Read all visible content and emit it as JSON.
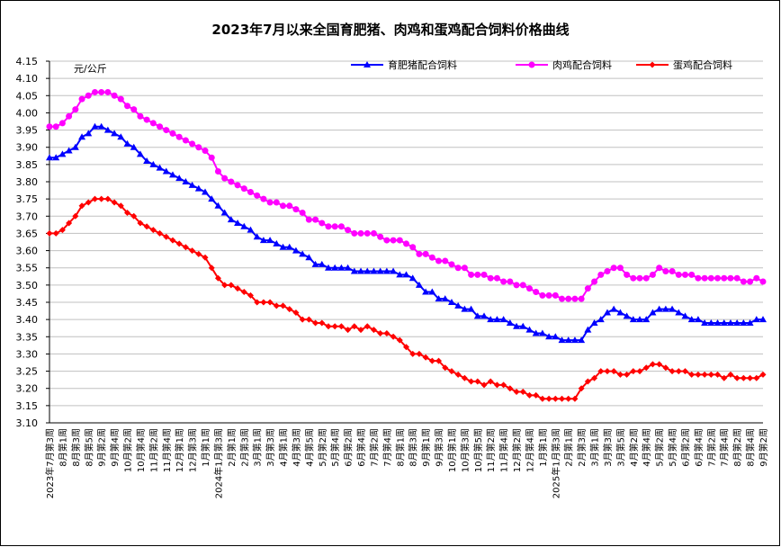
{
  "chart_data": {
    "type": "line",
    "title": "2023年7月以来全国育肥猪、肉鸡和蛋鸡配合饲料价格曲线",
    "y_axis_label": "元/公斤",
    "categories": [
      "2023年7月第3周",
      null,
      "8月第1周",
      null,
      "8月第3周",
      null,
      "8月第5周",
      null,
      "9月第2周",
      null,
      "9月第4周",
      null,
      "10月第2周",
      null,
      "10月第4周",
      null,
      "11月第2周",
      null,
      "11月第4周",
      null,
      "12月第1周",
      null,
      "12月第3周",
      null,
      "1月第1周",
      null,
      "2024年1月第3周",
      null,
      "2月第1周",
      null,
      "2月第3周",
      null,
      "3月第1周",
      null,
      "3月第3周",
      null,
      "4月第1周",
      null,
      "4月第3周",
      null,
      "4月第5周",
      null,
      "5月第2周",
      null,
      "5月第4周",
      null,
      "6月第2周",
      null,
      "6月第4周",
      null,
      "7月第2周",
      null,
      "7月第4周",
      null,
      "8月第1周",
      null,
      "8月第3周",
      null,
      "9月第1周",
      null,
      "9月第3周",
      null,
      "10月第1周",
      null,
      "10月第3周",
      null,
      "10月第5周",
      null,
      "11月第2周",
      null,
      "11月第4周",
      null,
      "12月第2周",
      null,
      "12月第4周",
      null,
      "1月第1周",
      null,
      "2025年1月第3周",
      null,
      "2月第1周",
      null,
      "2月第3周",
      null,
      "3月第1周",
      null,
      "3月第3周",
      null,
      "3月第5周",
      null,
      "4月第2周",
      null,
      "4月第4周",
      null,
      "5月第2周",
      null,
      "5月第4周",
      null,
      "6月第2周",
      null,
      "6月第4周",
      null,
      "7月第2周",
      null,
      "7月第4周",
      null,
      "8月第2周",
      null,
      "8月第4周",
      null,
      "9月第2周"
    ],
    "series": [
      {
        "name": "育肥猪配合饲料",
        "color": "#0000ff",
        "marker": "triangle",
        "values": [
          3.87,
          3.87,
          3.88,
          3.89,
          3.9,
          3.93,
          3.94,
          3.96,
          3.96,
          3.95,
          3.94,
          3.93,
          3.91,
          3.9,
          3.88,
          3.86,
          3.85,
          3.84,
          3.83,
          3.82,
          3.81,
          3.8,
          3.79,
          3.78,
          3.77,
          3.75,
          3.73,
          3.71,
          3.69,
          3.68,
          3.67,
          3.66,
          3.64,
          3.63,
          3.63,
          3.62,
          3.61,
          3.61,
          3.6,
          3.59,
          3.58,
          3.56,
          3.56,
          3.55,
          3.55,
          3.55,
          3.55,
          3.54,
          3.54,
          3.54,
          3.54,
          3.54,
          3.54,
          3.54,
          3.53,
          3.53,
          3.52,
          3.5,
          3.48,
          3.48,
          3.46,
          3.46,
          3.45,
          3.44,
          3.43,
          3.43,
          3.41,
          3.41,
          3.4,
          3.4,
          3.4,
          3.39,
          3.38,
          3.38,
          3.37,
          3.36,
          3.36,
          3.35,
          3.35,
          3.34,
          3.34,
          3.34,
          3.34,
          3.37,
          3.39,
          3.4,
          3.42,
          3.43,
          3.42,
          3.41,
          3.4,
          3.4,
          3.4,
          3.42,
          3.43,
          3.43,
          3.43,
          3.42,
          3.41,
          3.4,
          3.4,
          3.39,
          3.39,
          3.39,
          3.39,
          3.39,
          3.39,
          3.39,
          3.39,
          3.4,
          3.4
        ]
      },
      {
        "name": "肉鸡配合饲料",
        "color": "#ff00ff",
        "marker": "circle",
        "values": [
          3.96,
          3.96,
          3.97,
          3.99,
          4.01,
          4.04,
          4.05,
          4.06,
          4.06,
          4.06,
          4.05,
          4.04,
          4.02,
          4.01,
          3.99,
          3.98,
          3.97,
          3.96,
          3.95,
          3.94,
          3.93,
          3.92,
          3.91,
          3.9,
          3.89,
          3.87,
          3.83,
          3.81,
          3.8,
          3.79,
          3.78,
          3.77,
          3.76,
          3.75,
          3.74,
          3.74,
          3.73,
          3.73,
          3.72,
          3.71,
          3.69,
          3.69,
          3.68,
          3.67,
          3.67,
          3.67,
          3.66,
          3.65,
          3.65,
          3.65,
          3.65,
          3.64,
          3.63,
          3.63,
          3.63,
          3.62,
          3.61,
          3.59,
          3.59,
          3.58,
          3.57,
          3.57,
          3.56,
          3.55,
          3.55,
          3.53,
          3.53,
          3.53,
          3.52,
          3.52,
          3.51,
          3.51,
          3.5,
          3.5,
          3.49,
          3.48,
          3.47,
          3.47,
          3.47,
          3.46,
          3.46,
          3.46,
          3.46,
          3.49,
          3.51,
          3.53,
          3.54,
          3.55,
          3.55,
          3.53,
          3.52,
          3.52,
          3.52,
          3.53,
          3.55,
          3.54,
          3.54,
          3.53,
          3.53,
          3.53,
          3.52,
          3.52,
          3.52,
          3.52,
          3.52,
          3.52,
          3.52,
          3.51,
          3.51,
          3.52,
          3.51
        ]
      },
      {
        "name": "蛋鸡配合饲料",
        "color": "#ff0000",
        "marker": "diamond",
        "values": [
          3.65,
          3.65,
          3.66,
          3.68,
          3.7,
          3.73,
          3.74,
          3.75,
          3.75,
          3.75,
          3.74,
          3.73,
          3.71,
          3.7,
          3.68,
          3.67,
          3.66,
          3.65,
          3.64,
          3.63,
          3.62,
          3.61,
          3.6,
          3.59,
          3.58,
          3.55,
          3.52,
          3.5,
          3.5,
          3.49,
          3.48,
          3.47,
          3.45,
          3.45,
          3.45,
          3.44,
          3.44,
          3.43,
          3.42,
          3.4,
          3.4,
          3.39,
          3.39,
          3.38,
          3.38,
          3.38,
          3.37,
          3.38,
          3.37,
          3.38,
          3.37,
          3.36,
          3.36,
          3.35,
          3.34,
          3.32,
          3.3,
          3.3,
          3.29,
          3.28,
          3.28,
          3.26,
          3.25,
          3.24,
          3.23,
          3.22,
          3.22,
          3.21,
          3.22,
          3.21,
          3.21,
          3.2,
          3.19,
          3.19,
          3.18,
          3.18,
          3.17,
          3.17,
          3.17,
          3.17,
          3.17,
          3.17,
          3.2,
          3.22,
          3.23,
          3.25,
          3.25,
          3.25,
          3.24,
          3.24,
          3.25,
          3.25,
          3.26,
          3.27,
          3.27,
          3.26,
          3.25,
          3.25,
          3.25,
          3.24,
          3.24,
          3.24,
          3.24,
          3.24,
          3.23,
          3.24,
          3.23,
          3.23,
          3.23,
          3.23,
          3.24
        ]
      }
    ],
    "ylim": [
      3.1,
      4.15
    ],
    "yticks": [
      {
        "value": 3.1,
        "label": "3.10"
      },
      3.15,
      {
        "value": 3.2,
        "label": "3.20"
      },
      3.25,
      {
        "value": 3.3,
        "label": "3.30"
      },
      3.35,
      {
        "value": 3.4,
        "label": "3.40"
      },
      3.45,
      {
        "value": 3.5,
        "label": "3.50"
      },
      3.55,
      {
        "value": 3.6,
        "label": "3.60"
      },
      3.65,
      {
        "value": 3.7,
        "label": "3.70"
      },
      3.75,
      {
        "value": 3.8,
        "label": "3.80"
      },
      3.85,
      {
        "value": 3.9,
        "label": "3.90"
      },
      3.95,
      {
        "value": 4.0,
        "label": "4.00"
      },
      4.05,
      {
        "value": 4.1,
        "label": "4.10"
      },
      4.15
    ],
    "grid": true,
    "legend": "top-right"
  }
}
